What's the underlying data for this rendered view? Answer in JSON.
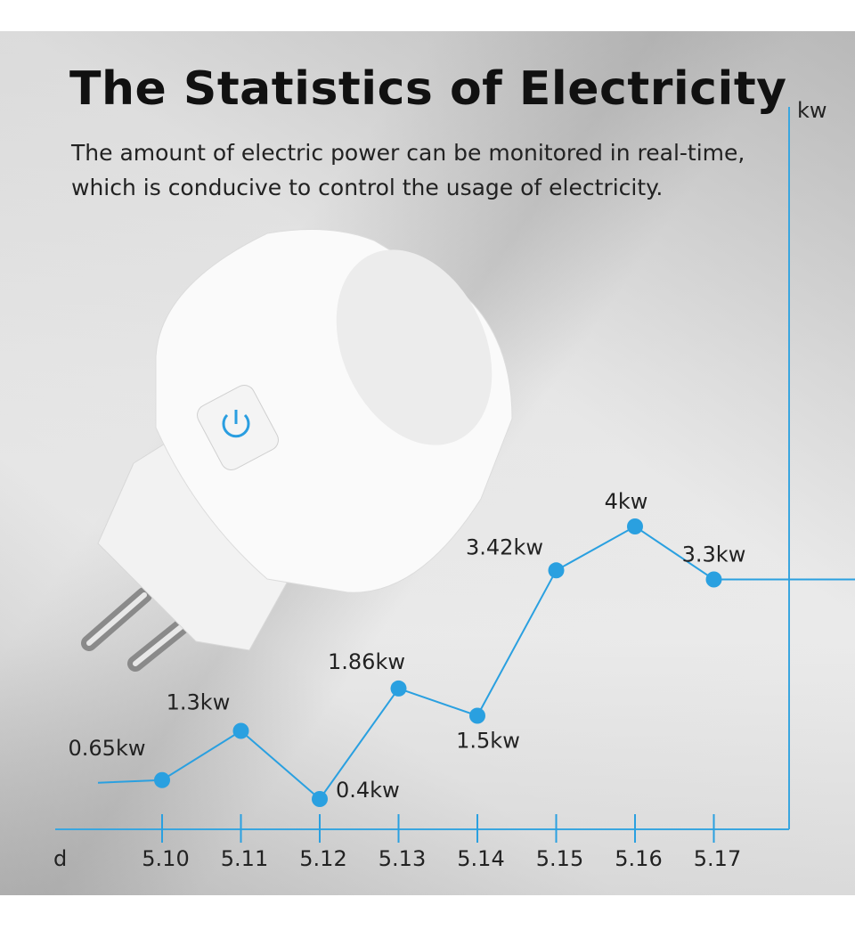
{
  "title": "The Statistics of Electricity",
  "subtitle_lines": [
    "The amount of electric power can be monitored in real-time,",
    "which is conducive to control the usage of electricity."
  ],
  "colors": {
    "accent": "#2aa0e0",
    "text": "#111111"
  },
  "chart_data": {
    "type": "line",
    "title": "",
    "xlabel": "d",
    "ylabel": "kw",
    "categories": [
      "5.10",
      "5.11",
      "5.12",
      "5.13",
      "5.14",
      "5.15",
      "5.16",
      "5.17"
    ],
    "values": [
      0.65,
      1.3,
      0.4,
      1.86,
      1.5,
      3.42,
      4,
      3.3
    ],
    "data_labels": [
      "0.65kw",
      "1.3kw",
      "0.4kw",
      "1.86kw",
      "1.5kw",
      "3.42kw",
      "4kw",
      "3.3kw"
    ],
    "ylim": [
      0,
      4.2
    ],
    "grid": false,
    "legend": "none"
  }
}
